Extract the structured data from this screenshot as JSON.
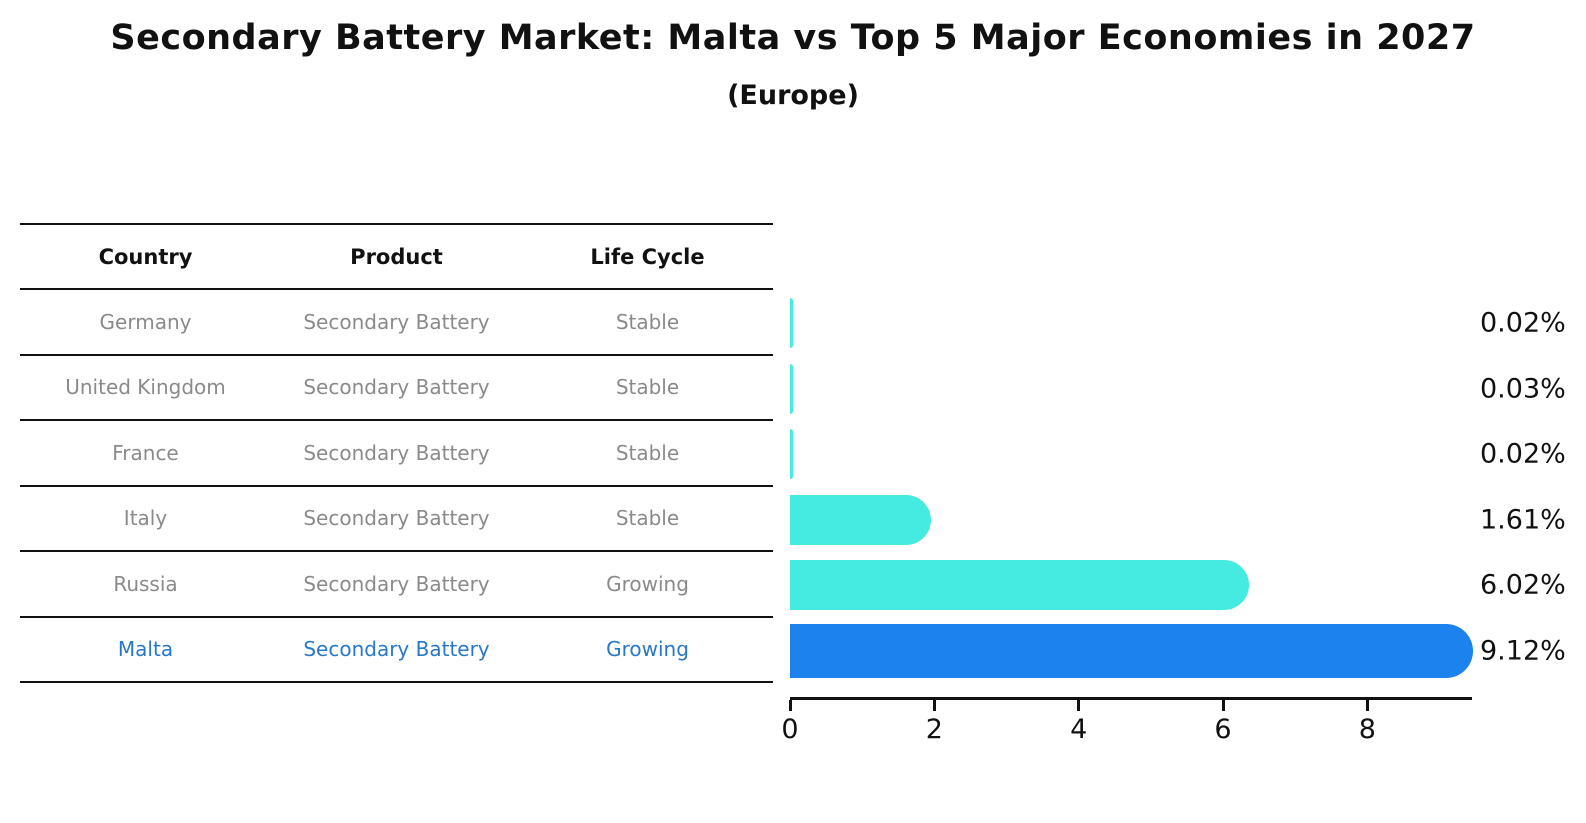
{
  "header": {
    "title": "Secondary Battery Market: Malta vs Top 5 Major Economies in 2027",
    "subtitle": "(Europe)"
  },
  "table": {
    "columns": [
      "Country",
      "Product",
      "Life Cycle"
    ],
    "rows": [
      {
        "country": "Germany",
        "product": "Secondary Battery",
        "life_cycle": "Stable",
        "highlight": false
      },
      {
        "country": "United Kingdom",
        "product": "Secondary Battery",
        "life_cycle": "Stable",
        "highlight": false
      },
      {
        "country": "France",
        "product": "Secondary Battery",
        "life_cycle": "Stable",
        "highlight": false
      },
      {
        "country": "Italy",
        "product": "Secondary Battery",
        "life_cycle": "Stable",
        "highlight": false
      },
      {
        "country": "Russia",
        "product": "Secondary Battery",
        "life_cycle": "Growing",
        "highlight": false
      },
      {
        "country": "Malta",
        "product": "Secondary Battery",
        "life_cycle": "Growing",
        "highlight": true
      }
    ]
  },
  "chart_data": {
    "type": "bar",
    "orientation": "horizontal",
    "title": "Secondary Battery Market: Malta vs Top 5 Major Economies in 2027 (Europe)",
    "categories": [
      "Germany",
      "United Kingdom",
      "France",
      "Italy",
      "Russia",
      "Malta"
    ],
    "values": [
      0.02,
      0.03,
      0.02,
      1.61,
      6.02,
      9.12
    ],
    "value_labels": [
      "0.02%",
      "0.03%",
      "0.02%",
      "1.61%",
      "6.02%",
      "9.12%"
    ],
    "xticks": [
      0,
      2,
      4,
      6,
      8
    ],
    "xlim": [
      0,
      9.45
    ],
    "grid": false,
    "legend": false,
    "bar_color": "#45EAE0",
    "highlight_bar_color": "#1C82EE",
    "highlight_index": 5
  },
  "colors": {
    "title_text": "#111111",
    "table_header_text": "#111111",
    "table_row_text": "#8a8a8a",
    "highlight_row_text": "#2878C8",
    "axis_color": "#111111",
    "value_label_text": "#111111"
  }
}
